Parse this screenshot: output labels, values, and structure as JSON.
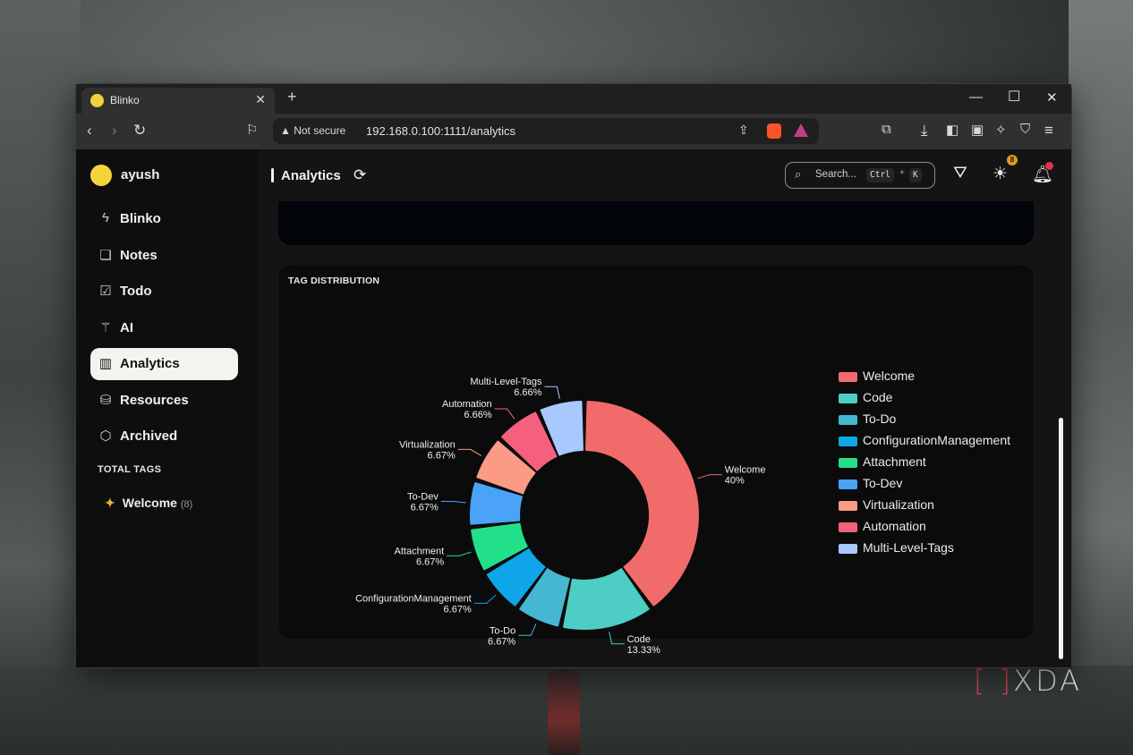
{
  "browser": {
    "tab_title": "Blinko",
    "tab_close": "✕",
    "new_tab": "+",
    "security_label": "Not secure",
    "url": "192.168.0.100:1111/analytics"
  },
  "sidebar": {
    "user_name": "ayush",
    "items": [
      {
        "label": "Blinko",
        "icon": "bolt-icon"
      },
      {
        "label": "Notes",
        "icon": "notes-icon"
      },
      {
        "label": "Todo",
        "icon": "todo-icon"
      },
      {
        "label": "AI",
        "icon": "magic-wand-icon"
      },
      {
        "label": "Analytics",
        "icon": "chart-icon",
        "active": true
      },
      {
        "label": "Resources",
        "icon": "database-icon"
      },
      {
        "label": "Archived",
        "icon": "archive-box-icon"
      }
    ],
    "total_tags_title": "TOTAL TAGS",
    "tags": [
      {
        "label": "Welcome",
        "count": "(8)"
      }
    ]
  },
  "header": {
    "title": "Analytics",
    "search_placeholder": "Search...",
    "shortcut_key1": "Ctrl",
    "shortcut_plus": "+",
    "shortcut_key2": "K",
    "lightbulb_badge": "8"
  },
  "tag_panel": {
    "title": "TAG DISTRIBUTION"
  },
  "chart_data": {
    "type": "pie",
    "variant": "donut",
    "title": "TAG DISTRIBUTION",
    "legend_placement": "right",
    "slices": [
      {
        "name": "Welcome",
        "value": 40,
        "label": "40%",
        "color": "#f26b6b"
      },
      {
        "name": "Code",
        "value": 13.33,
        "label": "13.33%",
        "color": "#4ecdc4"
      },
      {
        "name": "To-Do",
        "value": 6.67,
        "label": "6.67%",
        "color": "#45b7d1"
      },
      {
        "name": "ConfigurationManagement",
        "value": 6.67,
        "label": "6.67%",
        "color": "#0ea5e9"
      },
      {
        "name": "Attachment",
        "value": 6.67,
        "label": "6.67%",
        "color": "#22e08a"
      },
      {
        "name": "To-Dev",
        "value": 6.67,
        "label": "6.67%",
        "color": "#4aa3f7"
      },
      {
        "name": "Virtualization",
        "value": 6.67,
        "label": "6.67%",
        "color": "#fb9a85"
      },
      {
        "name": "Automation",
        "value": 6.66,
        "label": "6.66%",
        "color": "#f5607f"
      },
      {
        "name": "Multi-Level-Tags",
        "value": 6.66,
        "label": "6.66%",
        "color": "#a9c8ff"
      }
    ]
  },
  "watermark": {
    "brand": "XDA",
    "bracket": "[ ]"
  }
}
